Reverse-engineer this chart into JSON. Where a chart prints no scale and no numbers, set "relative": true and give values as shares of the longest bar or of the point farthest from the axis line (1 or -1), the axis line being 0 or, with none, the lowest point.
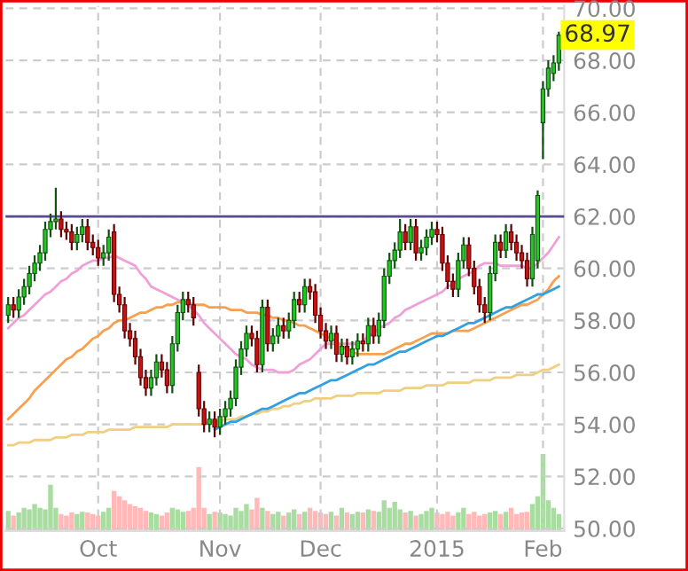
{
  "chart_data": [
    {
      "type": "candlestick",
      "categories": [
        null,
        null,
        null,
        null,
        null,
        null,
        null,
        null,
        null,
        null,
        null,
        null,
        null,
        null,
        null,
        null,
        null,
        "Oct",
        null,
        null,
        null,
        null,
        null,
        null,
        null,
        null,
        null,
        null,
        null,
        null,
        null,
        null,
        null,
        null,
        null,
        null,
        null,
        null,
        null,
        null,
        "Nov",
        null,
        null,
        null,
        null,
        null,
        null,
        null,
        null,
        null,
        null,
        null,
        null,
        null,
        null,
        null,
        null,
        null,
        null,
        "Dec",
        null,
        null,
        null,
        null,
        null,
        null,
        null,
        null,
        null,
        null,
        null,
        null,
        null,
        null,
        null,
        null,
        null,
        null,
        null,
        null,
        null,
        "2015",
        null,
        null,
        null,
        null,
        null,
        null,
        null,
        null,
        null,
        null,
        null,
        null,
        null,
        null,
        null,
        null,
        null,
        null,
        null,
        "Feb",
        null,
        null,
        null
      ],
      "ohlc": [
        [
          58.2,
          58.9,
          57.9,
          58.6
        ],
        [
          58.6,
          58.9,
          58.1,
          58.4
        ],
        [
          58.4,
          59.2,
          58.1,
          58.9
        ],
        [
          58.9,
          59.6,
          58.6,
          59.3
        ],
        [
          59.3,
          60.1,
          59.0,
          59.8
        ],
        [
          59.8,
          60.5,
          59.5,
          60.2
        ],
        [
          60.2,
          60.9,
          59.9,
          60.6
        ],
        [
          60.6,
          61.8,
          60.3,
          61.5
        ],
        [
          61.5,
          62.1,
          61.2,
          61.8
        ],
        [
          61.8,
          63.1,
          61.5,
          61.9
        ],
        [
          61.9,
          62.2,
          61.2,
          61.5
        ],
        [
          61.5,
          61.8,
          61.1,
          61.4
        ],
        [
          61.4,
          61.7,
          60.7,
          61.0
        ],
        [
          61.0,
          61.6,
          60.7,
          61.3
        ],
        [
          61.3,
          61.9,
          61.0,
          61.6
        ],
        [
          61.6,
          61.9,
          60.7,
          61.0
        ],
        [
          61.0,
          61.3,
          60.5,
          60.8
        ],
        [
          60.8,
          61.1,
          60.1,
          60.4
        ],
        [
          60.4,
          60.9,
          60.1,
          60.6
        ],
        [
          60.6,
          61.5,
          60.3,
          61.2
        ],
        [
          61.4,
          61.7,
          58.7,
          59.0
        ],
        [
          59.0,
          59.3,
          58.3,
          58.6
        ],
        [
          58.6,
          58.9,
          57.3,
          57.6
        ],
        [
          57.6,
          57.9,
          57.0,
          57.3
        ],
        [
          57.3,
          57.6,
          56.3,
          56.6
        ],
        [
          56.6,
          56.9,
          55.5,
          55.8
        ],
        [
          55.8,
          56.1,
          55.1,
          55.4
        ],
        [
          55.4,
          56.1,
          55.1,
          55.8
        ],
        [
          55.8,
          56.7,
          55.5,
          56.4
        ],
        [
          56.4,
          56.7,
          55.8,
          56.1
        ],
        [
          56.1,
          56.4,
          55.2,
          55.5
        ],
        [
          55.5,
          57.4,
          55.2,
          57.1
        ],
        [
          57.1,
          58.6,
          56.8,
          58.3
        ],
        [
          58.3,
          59.1,
          58.0,
          58.8
        ],
        [
          58.8,
          59.1,
          58.3,
          58.6
        ],
        [
          58.6,
          58.9,
          57.8,
          58.1
        ],
        [
          56.0,
          56.3,
          54.3,
          54.6
        ],
        [
          54.6,
          54.9,
          53.7,
          54.0
        ],
        [
          54.0,
          54.5,
          53.7,
          54.2
        ],
        [
          54.2,
          54.5,
          53.5,
          53.9
        ],
        [
          53.9,
          54.6,
          53.6,
          54.3
        ],
        [
          54.3,
          54.9,
          54.0,
          54.6
        ],
        [
          54.6,
          55.3,
          54.3,
          55.0
        ],
        [
          55.0,
          56.5,
          54.7,
          56.2
        ],
        [
          56.2,
          57.2,
          55.9,
          56.9
        ],
        [
          56.9,
          57.8,
          56.6,
          57.5
        ],
        [
          57.5,
          57.8,
          57.0,
          57.3
        ],
        [
          57.3,
          57.6,
          56.0,
          56.3
        ],
        [
          56.3,
          58.8,
          56.0,
          58.5
        ],
        [
          58.5,
          58.8,
          56.8,
          57.1
        ],
        [
          57.1,
          57.7,
          56.8,
          57.4
        ],
        [
          57.4,
          58.1,
          57.1,
          57.8
        ],
        [
          57.8,
          58.1,
          57.3,
          57.6
        ],
        [
          57.6,
          58.3,
          57.3,
          58.0
        ],
        [
          58.0,
          59.1,
          57.7,
          58.8
        ],
        [
          58.8,
          59.1,
          58.3,
          58.6
        ],
        [
          58.6,
          59.6,
          58.3,
          59.3
        ],
        [
          59.3,
          59.6,
          58.8,
          59.1
        ],
        [
          59.1,
          59.4,
          57.9,
          58.2
        ],
        [
          58.2,
          58.5,
          57.3,
          57.6
        ],
        [
          57.6,
          57.9,
          56.9,
          57.2
        ],
        [
          57.2,
          57.8,
          56.9,
          57.5
        ],
        [
          57.5,
          57.8,
          56.4,
          56.7
        ],
        [
          56.7,
          57.3,
          56.4,
          57.0
        ],
        [
          57.0,
          57.3,
          56.3,
          56.6
        ],
        [
          56.6,
          57.2,
          56.3,
          56.9
        ],
        [
          56.9,
          57.5,
          56.6,
          57.2
        ],
        [
          57.2,
          57.5,
          56.8,
          57.1
        ],
        [
          57.1,
          58.1,
          56.8,
          57.8
        ],
        [
          57.8,
          58.1,
          57.1,
          57.4
        ],
        [
          57.4,
          58.3,
          57.1,
          58.0
        ],
        [
          58.0,
          60.0,
          57.7,
          59.7
        ],
        [
          59.7,
          60.6,
          59.4,
          60.3
        ],
        [
          60.3,
          61.0,
          60.0,
          60.7
        ],
        [
          60.7,
          61.9,
          60.4,
          61.4
        ],
        [
          61.4,
          61.7,
          60.7,
          61.0
        ],
        [
          61.0,
          61.9,
          60.7,
          61.6
        ],
        [
          61.6,
          61.9,
          60.3,
          60.6
        ],
        [
          60.6,
          61.1,
          60.3,
          60.8
        ],
        [
          60.8,
          61.5,
          60.5,
          61.2
        ],
        [
          61.2,
          61.8,
          60.9,
          61.5
        ],
        [
          61.5,
          61.8,
          61.0,
          61.3
        ],
        [
          61.3,
          61.6,
          59.9,
          60.2
        ],
        [
          60.2,
          60.5,
          59.2,
          59.5
        ],
        [
          59.5,
          59.8,
          58.9,
          59.2
        ],
        [
          59.2,
          60.6,
          58.9,
          60.3
        ],
        [
          60.3,
          61.2,
          60.0,
          60.9
        ],
        [
          60.9,
          61.2,
          59.7,
          60.0
        ],
        [
          60.0,
          60.3,
          59.0,
          59.3
        ],
        [
          59.3,
          59.6,
          58.3,
          58.6
        ],
        [
          58.6,
          58.9,
          57.9,
          58.3
        ],
        [
          58.3,
          60.1,
          58.0,
          59.8
        ],
        [
          59.8,
          61.3,
          59.5,
          61.0
        ],
        [
          61.0,
          61.3,
          60.4,
          60.7
        ],
        [
          60.7,
          61.7,
          60.4,
          61.4
        ],
        [
          61.4,
          61.7,
          60.7,
          61.0
        ],
        [
          61.0,
          61.3,
          60.3,
          60.6
        ],
        [
          60.6,
          60.9,
          60.0,
          60.3
        ],
        [
          60.3,
          60.6,
          59.3,
          59.6
        ],
        [
          59.6,
          61.6,
          59.3,
          61.3
        ],
        [
          60.3,
          63.0,
          60.0,
          62.8
        ],
        [
          65.6,
          67.2,
          64.2,
          66.9
        ],
        [
          66.9,
          68.0,
          66.6,
          67.7
        ],
        [
          67.5,
          68.2,
          67.2,
          67.9
        ],
        [
          67.9,
          69.1,
          67.6,
          68.97
        ]
      ],
      "colors": [
        "#1ec81e",
        "#cc1010",
        "#1ec81e",
        "#1ec81e",
        "#1ec81e",
        "#1ec81e",
        "#1ec81e",
        "#1ec81e",
        "#1ec81e",
        "#1ec81e",
        "#cc1010",
        "#cc1010",
        "#cc1010",
        "#1ec81e",
        "#1ec81e",
        "#cc1010",
        "#cc1010",
        "#cc1010",
        "#1ec81e",
        "#1ec81e",
        "#cc1010",
        "#cc1010",
        "#cc1010",
        "#cc1010",
        "#cc1010",
        "#cc1010",
        "#cc1010",
        "#1ec81e",
        "#1ec81e",
        "#cc1010",
        "#cc1010",
        "#1ec81e",
        "#1ec81e",
        "#1ec81e",
        "#cc1010",
        "#cc1010",
        "#cc1010",
        "#cc1010",
        "#1ec81e",
        "#cc1010",
        "#1ec81e",
        "#1ec81e",
        "#1ec81e",
        "#1ec81e",
        "#1ec81e",
        "#1ec81e",
        "#cc1010",
        "#cc1010",
        "#1ec81e",
        "#cc1010",
        "#1ec81e",
        "#1ec81e",
        "#cc1010",
        "#1ec81e",
        "#1ec81e",
        "#cc1010",
        "#1ec81e",
        "#cc1010",
        "#cc1010",
        "#cc1010",
        "#cc1010",
        "#1ec81e",
        "#cc1010",
        "#1ec81e",
        "#cc1010",
        "#1ec81e",
        "#1ec81e",
        "#cc1010",
        "#1ec81e",
        "#cc1010",
        "#1ec81e",
        "#1ec81e",
        "#1ec81e",
        "#1ec81e",
        "#1ec81e",
        "#cc1010",
        "#1ec81e",
        "#cc1010",
        "#1ec81e",
        "#1ec81e",
        "#1ec81e",
        "#cc1010",
        "#cc1010",
        "#cc1010",
        "#cc1010",
        "#1ec81e",
        "#1ec81e",
        "#cc1010",
        "#cc1010",
        "#cc1010",
        "#cc1010",
        "#1ec81e",
        "#1ec81e",
        "#cc1010",
        "#1ec81e",
        "#cc1010",
        "#cc1010",
        "#cc1010",
        "#cc1010",
        "#1ec81e",
        "#1ec81e",
        "#1ec81e",
        "#1ec81e",
        "#1ec81e",
        "#1ec81e"
      ],
      "series": [
        {
          "type": "line",
          "color": "#f0a0d8",
          "values": [
            57.7,
            57.9,
            58.1,
            58.2,
            58.4,
            58.6,
            58.8,
            59.0,
            59.1,
            59.3,
            59.5,
            59.6,
            59.8,
            59.9,
            60.1,
            60.2,
            60.3,
            60.3,
            60.4,
            60.4,
            60.5,
            60.4,
            60.3,
            60.2,
            60.1,
            59.8,
            59.6,
            59.3,
            59.2,
            59.1,
            59.0,
            58.9,
            58.8,
            58.7,
            58.6,
            58.4,
            58.2,
            57.9,
            57.7,
            57.5,
            57.3,
            57.1,
            56.9,
            56.7,
            56.6,
            56.5,
            56.3,
            56.2,
            56.1,
            56.1,
            56.1,
            56.0,
            56.0,
            56.0,
            56.1,
            56.3,
            56.4,
            56.5,
            56.7,
            56.9,
            57.1,
            57.1,
            57.1,
            57.1,
            57.1,
            57.1,
            57.1,
            57.2,
            57.4,
            57.5,
            57.7,
            57.8,
            57.9,
            58.1,
            58.2,
            58.4,
            58.5,
            58.6,
            58.7,
            58.8,
            58.9,
            59.0,
            59.1,
            59.3,
            59.4,
            59.6,
            59.7,
            59.8,
            59.9,
            60.1,
            60.2,
            60.2,
            60.2,
            60.1,
            60.1,
            60.1,
            60.1,
            60.1,
            60.0,
            60.0,
            60.2,
            60.4,
            60.6,
            60.9,
            61.2
          ]
        },
        {
          "type": "line",
          "color": "#f8a050",
          "values": [
            54.2,
            54.4,
            54.6,
            54.8,
            55.0,
            55.3,
            55.5,
            55.7,
            55.9,
            56.1,
            56.3,
            56.5,
            56.6,
            56.8,
            56.9,
            57.1,
            57.3,
            57.4,
            57.6,
            57.7,
            57.9,
            58.0,
            58.0,
            58.1,
            58.2,
            58.3,
            58.3,
            58.4,
            58.5,
            58.5,
            58.6,
            58.6,
            58.7,
            58.7,
            58.7,
            58.6,
            58.6,
            58.6,
            58.5,
            58.5,
            58.5,
            58.5,
            58.4,
            58.4,
            58.4,
            58.3,
            58.3,
            58.3,
            58.2,
            58.2,
            58.1,
            58.1,
            58.0,
            58.0,
            57.9,
            57.8,
            57.8,
            57.7,
            57.6,
            57.5,
            57.4,
            57.3,
            57.2,
            57.0,
            56.9,
            56.8,
            56.7,
            56.7,
            56.7,
            56.7,
            56.7,
            56.7,
            56.8,
            56.9,
            57.0,
            57.1,
            57.1,
            57.2,
            57.3,
            57.4,
            57.5,
            57.5,
            57.5,
            57.5,
            57.6,
            57.6,
            57.6,
            57.6,
            57.7,
            57.8,
            57.9,
            58.0,
            58.1,
            58.2,
            58.3,
            58.4,
            58.5,
            58.6,
            58.6,
            58.7,
            58.8,
            59.0,
            59.2,
            59.5,
            59.7
          ]
        },
        {
          "type": "line",
          "color": "#f0d080",
          "values": [
            53.2,
            53.2,
            53.3,
            53.3,
            53.3,
            53.4,
            53.4,
            53.4,
            53.4,
            53.5,
            53.5,
            53.5,
            53.6,
            53.6,
            53.6,
            53.7,
            53.7,
            53.7,
            53.7,
            53.8,
            53.8,
            53.8,
            53.8,
            53.8,
            53.9,
            53.9,
            53.9,
            53.9,
            53.9,
            53.9,
            53.9,
            54.0,
            54.0,
            54.0,
            54.0,
            54.0,
            54.0,
            54.0,
            54.1,
            54.1,
            54.1,
            54.2,
            54.2,
            54.2,
            54.3,
            54.3,
            54.4,
            54.4,
            54.5,
            54.5,
            54.6,
            54.6,
            54.7,
            54.7,
            54.8,
            54.8,
            54.9,
            54.9,
            55.0,
            55.0,
            55.0,
            55.0,
            55.1,
            55.1,
            55.1,
            55.1,
            55.2,
            55.2,
            55.2,
            55.2,
            55.2,
            55.3,
            55.3,
            55.3,
            55.3,
            55.4,
            55.4,
            55.4,
            55.4,
            55.5,
            55.5,
            55.5,
            55.5,
            55.6,
            55.6,
            55.6,
            55.6,
            55.6,
            55.7,
            55.7,
            55.7,
            55.7,
            55.8,
            55.8,
            55.8,
            55.8,
            55.9,
            55.9,
            55.9,
            55.9,
            56.0,
            56.1,
            56.1,
            56.2,
            56.3
          ]
        },
        {
          "type": "line",
          "color": "#30a0e0",
          "values": [
            null,
            null,
            null,
            null,
            null,
            null,
            null,
            null,
            null,
            null,
            null,
            null,
            null,
            null,
            null,
            null,
            null,
            null,
            null,
            null,
            null,
            null,
            null,
            null,
            null,
            null,
            null,
            null,
            null,
            null,
            null,
            null,
            null,
            null,
            null,
            null,
            null,
            null,
            null,
            53.8,
            53.9,
            54.0,
            54.1,
            54.1,
            54.2,
            54.3,
            54.4,
            54.5,
            54.6,
            54.6,
            54.7,
            54.8,
            54.9,
            55.0,
            55.1,
            55.2,
            55.2,
            55.3,
            55.4,
            55.5,
            55.6,
            55.7,
            55.7,
            55.8,
            55.9,
            56.0,
            56.1,
            56.2,
            56.3,
            56.3,
            56.4,
            56.5,
            56.6,
            56.7,
            56.8,
            56.8,
            56.9,
            57.0,
            57.1,
            57.2,
            57.3,
            57.4,
            57.4,
            57.5,
            57.6,
            57.7,
            57.8,
            57.9,
            57.9,
            58.0,
            58.1,
            58.2,
            58.3,
            58.4,
            58.5,
            58.5,
            58.6,
            58.7,
            58.8,
            58.9,
            59.0,
            59.0,
            59.1,
            59.2,
            59.3
          ]
        }
      ],
      "ref_lines": [
        {
          "axis": "y",
          "value": 62,
          "color": "#5a4a90"
        }
      ],
      "annotations": [
        {
          "text": "68.97",
          "y": 68.97
        }
      ],
      "ylim": [
        49.9,
        70.1
      ],
      "yticks": [
        {
          "value": 50,
          "label": "50.00"
        },
        {
          "value": 52,
          "label": "52.00"
        },
        {
          "value": 54,
          "label": "54.00"
        },
        {
          "value": 56,
          "label": "56.00"
        },
        {
          "value": 58,
          "label": "58.00"
        },
        {
          "value": 60,
          "label": "60.00"
        },
        {
          "value": 62,
          "label": "62.00"
        },
        {
          "value": 64,
          "label": "64.00"
        },
        {
          "value": 66,
          "label": "66.00"
        },
        {
          "value": 68,
          "label": "68.00"
        },
        {
          "value": 70,
          "label": "70.00"
        }
      ],
      "grid": true
    },
    {
      "type": "bar",
      "relative": true,
      "tick_labels": false,
      "categories": [
        null,
        null,
        null,
        null,
        null,
        null,
        null,
        null,
        null,
        null,
        null,
        null,
        null,
        null,
        null,
        null,
        null,
        null,
        null,
        null,
        null,
        null,
        null,
        null,
        null,
        null,
        null,
        null,
        null,
        null,
        null,
        null,
        null,
        null,
        null,
        null,
        null,
        null,
        null,
        null,
        null,
        null,
        null,
        null,
        null,
        null,
        null,
        null,
        null,
        null,
        null,
        null,
        null,
        null,
        null,
        null,
        null,
        null,
        null,
        null,
        null,
        null,
        null,
        null,
        null,
        null,
        null,
        null,
        null,
        null,
        null,
        null,
        null,
        null,
        null,
        null,
        null,
        null,
        null,
        null,
        null,
        null,
        null,
        null,
        null,
        null,
        null,
        null,
        null,
        null,
        null,
        null,
        null,
        null,
        null,
        null,
        null,
        null,
        null,
        null,
        null,
        null,
        null,
        null,
        null
      ],
      "values": [
        0.26,
        0.2,
        0.24,
        0.3,
        0.28,
        0.35,
        0.3,
        0.28,
        0.6,
        0.3,
        0.22,
        0.2,
        0.24,
        0.22,
        0.25,
        0.24,
        0.22,
        0.2,
        0.25,
        0.3,
        0.52,
        0.45,
        0.4,
        0.35,
        0.32,
        0.3,
        0.26,
        0.24,
        0.22,
        0.2,
        0.24,
        0.3,
        0.28,
        0.25,
        0.26,
        0.3,
        0.83,
        0.3,
        0.22,
        0.25,
        0.24,
        0.22,
        0.2,
        0.3,
        0.26,
        0.35,
        0.28,
        0.43,
        0.3,
        0.26,
        0.22,
        0.25,
        0.2,
        0.24,
        0.28,
        0.22,
        0.25,
        0.3,
        0.26,
        0.24,
        0.22,
        0.25,
        0.2,
        0.3,
        0.24,
        0.22,
        0.25,
        0.24,
        0.28,
        0.26,
        0.25,
        0.4,
        0.3,
        0.38,
        0.28,
        0.24,
        0.26,
        0.2,
        0.22,
        0.26,
        0.3,
        0.24,
        0.22,
        0.25,
        0.2,
        0.24,
        0.3,
        0.22,
        0.25,
        0.2,
        0.22,
        0.24,
        0.26,
        0.22,
        0.25,
        0.3,
        0.22,
        0.24,
        0.25,
        0.35,
        0.45,
        1.0,
        0.4,
        0.3,
        0.22
      ],
      "colors": [
        "#a8dca0",
        "#ffb9b9",
        "#a8dca0",
        "#a8dca0",
        "#a8dca0",
        "#a8dca0",
        "#a8dca0",
        "#a8dca0",
        "#a8dca0",
        "#a8dca0",
        "#ffb9b9",
        "#ffb9b9",
        "#ffb9b9",
        "#a8dca0",
        "#a8dca0",
        "#ffb9b9",
        "#ffb9b9",
        "#ffb9b9",
        "#a8dca0",
        "#a8dca0",
        "#ffb9b9",
        "#ffb9b9",
        "#ffb9b9",
        "#ffb9b9",
        "#ffb9b9",
        "#ffb9b9",
        "#ffb9b9",
        "#a8dca0",
        "#a8dca0",
        "#ffb9b9",
        "#ffb9b9",
        "#a8dca0",
        "#a8dca0",
        "#a8dca0",
        "#ffb9b9",
        "#ffb9b9",
        "#ffb9b9",
        "#ffb9b9",
        "#a8dca0",
        "#ffb9b9",
        "#a8dca0",
        "#a8dca0",
        "#a8dca0",
        "#a8dca0",
        "#a8dca0",
        "#a8dca0",
        "#ffb9b9",
        "#ffb9b9",
        "#a8dca0",
        "#ffb9b9",
        "#a8dca0",
        "#a8dca0",
        "#ffb9b9",
        "#a8dca0",
        "#a8dca0",
        "#ffb9b9",
        "#a8dca0",
        "#ffb9b9",
        "#ffb9b9",
        "#ffb9b9",
        "#ffb9b9",
        "#a8dca0",
        "#ffb9b9",
        "#a8dca0",
        "#ffb9b9",
        "#a8dca0",
        "#a8dca0",
        "#ffb9b9",
        "#a8dca0",
        "#ffb9b9",
        "#a8dca0",
        "#a8dca0",
        "#a8dca0",
        "#a8dca0",
        "#a8dca0",
        "#ffb9b9",
        "#a8dca0",
        "#ffb9b9",
        "#a8dca0",
        "#a8dca0",
        "#a8dca0",
        "#ffb9b9",
        "#ffb9b9",
        "#ffb9b9",
        "#ffb9b9",
        "#a8dca0",
        "#a8dca0",
        "#ffb9b9",
        "#ffb9b9",
        "#ffb9b9",
        "#ffb9b9",
        "#a8dca0",
        "#a8dca0",
        "#ffb9b9",
        "#a8dca0",
        "#ffb9b9",
        "#ffb9b9",
        "#ffb9b9",
        "#ffb9b9",
        "#a8dca0",
        "#a8dca0",
        "#a8dca0",
        "#a8dca0",
        "#a8dca0",
        "#a8dca0"
      ]
    }
  ]
}
